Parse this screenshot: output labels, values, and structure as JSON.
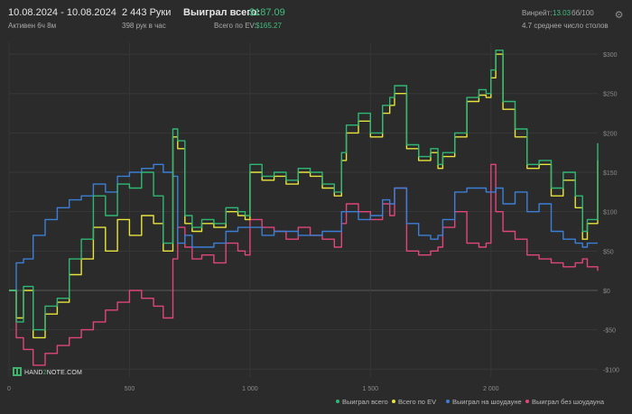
{
  "header": {
    "date_range": "10.08.2024 - 10.08.2024",
    "active_time": "Активен 6ч 8м",
    "hands": "2 443 Руки",
    "hands_per_hour": "398 рук в час",
    "won_total_label": "Выиграл всего:",
    "won_total_value": "$187.09",
    "ev_total_label": "Всего по EV:",
    "ev_total_value": "$165.27",
    "winrate_label": "Винрейт:",
    "winrate_value": "13.03",
    "winrate_unit": "бб/100",
    "avg_tables": "4.7 среднее число столов"
  },
  "icons": {
    "settings": "gear-icon",
    "logo": "hand2note-logo"
  },
  "logo": {
    "prefix": "HAND",
    "digit": "2",
    "suffix": "NOTE.COM"
  },
  "colors": {
    "won_total": "#2fb774",
    "ev_total": "#e8e43c",
    "showdown": "#3b7fd6",
    "non_showdown": "#e0457b",
    "background": "#2b2b2b"
  },
  "legend": {
    "won_total": "Выиграл всего",
    "ev_total": "Всего по EV",
    "showdown": "Выиграл на шоудауне",
    "non_showdown": "Выиграл без шоудауна"
  },
  "chart_data": {
    "type": "line",
    "xlim": [
      0,
      2443
    ],
    "ylim": [
      -110,
      315
    ],
    "x_ticks": [
      0,
      500,
      1000,
      1500,
      2000
    ],
    "x_tick_labels": [
      "0",
      "500",
      "1 000",
      "1 500",
      "2 000"
    ],
    "y_ticks": [
      -100,
      -50,
      0,
      50,
      100,
      150,
      200,
      250,
      300
    ],
    "y_tick_labels": [
      "-$100",
      "-$50",
      "$0",
      "$50",
      "$100",
      "$150",
      "$200",
      "$250",
      "$300"
    ],
    "grid": true,
    "legend_position": "bottom-right",
    "series": [
      {
        "key": "won_total",
        "name": "Выиграл всего",
        "x": [
          0,
          30,
          60,
          100,
          150,
          200,
          250,
          300,
          350,
          400,
          450,
          500,
          550,
          600,
          640,
          680,
          700,
          730,
          760,
          800,
          850,
          900,
          950,
          980,
          1000,
          1050,
          1100,
          1150,
          1200,
          1250,
          1300,
          1350,
          1380,
          1400,
          1450,
          1500,
          1550,
          1580,
          1600,
          1650,
          1700,
          1750,
          1780,
          1800,
          1850,
          1900,
          1950,
          1980,
          2000,
          2020,
          2050,
          2100,
          2150,
          2200,
          2250,
          2300,
          2350,
          2380,
          2400,
          2443
        ],
        "values": [
          0,
          -40,
          5,
          -50,
          -20,
          -10,
          40,
          65,
          120,
          95,
          135,
          130,
          150,
          120,
          60,
          205,
          190,
          95,
          80,
          90,
          85,
          105,
          100,
          95,
          160,
          145,
          150,
          140,
          155,
          150,
          135,
          125,
          175,
          210,
          225,
          200,
          235,
          245,
          260,
          185,
          170,
          180,
          160,
          175,
          200,
          245,
          255,
          250,
          280,
          305,
          240,
          205,
          160,
          165,
          130,
          150,
          120,
          75,
          90,
          187
        ]
      },
      {
        "key": "ev_total",
        "name": "Всего по EV",
        "x": [
          0,
          30,
          60,
          100,
          150,
          200,
          250,
          300,
          350,
          400,
          450,
          500,
          550,
          600,
          640,
          680,
          700,
          730,
          760,
          800,
          850,
          900,
          950,
          980,
          1000,
          1050,
          1100,
          1150,
          1200,
          1250,
          1300,
          1350,
          1380,
          1400,
          1450,
          1500,
          1550,
          1580,
          1600,
          1650,
          1700,
          1750,
          1780,
          1800,
          1850,
          1900,
          1950,
          1980,
          2000,
          2020,
          2050,
          2100,
          2150,
          2200,
          2250,
          2300,
          2350,
          2380,
          2400,
          2443
        ],
        "values": [
          0,
          -35,
          0,
          -60,
          -30,
          -15,
          20,
          40,
          80,
          50,
          90,
          70,
          95,
          85,
          50,
          195,
          180,
          85,
          75,
          85,
          80,
          100,
          95,
          90,
          150,
          140,
          145,
          135,
          150,
          145,
          130,
          120,
          165,
          200,
          215,
          195,
          225,
          235,
          250,
          180,
          165,
          175,
          155,
          170,
          195,
          240,
          248,
          245,
          270,
          300,
          230,
          195,
          155,
          160,
          120,
          140,
          105,
          65,
          85,
          165
        ]
      },
      {
        "key": "showdown",
        "name": "Выиграл на шоудауне",
        "x": [
          0,
          30,
          60,
          100,
          150,
          200,
          250,
          300,
          350,
          400,
          450,
          500,
          550,
          600,
          640,
          680,
          700,
          730,
          760,
          800,
          850,
          900,
          950,
          980,
          1000,
          1050,
          1100,
          1150,
          1200,
          1250,
          1300,
          1350,
          1380,
          1400,
          1450,
          1500,
          1550,
          1580,
          1600,
          1650,
          1700,
          1750,
          1780,
          1800,
          1850,
          1900,
          1950,
          1980,
          2000,
          2020,
          2050,
          2100,
          2150,
          2200,
          2250,
          2300,
          2350,
          2380,
          2400,
          2443
        ],
        "values": [
          0,
          35,
          40,
          70,
          90,
          105,
          115,
          120,
          135,
          125,
          145,
          150,
          155,
          160,
          150,
          145,
          60,
          70,
          55,
          55,
          60,
          75,
          80,
          80,
          80,
          70,
          75,
          75,
          70,
          70,
          75,
          75,
          100,
          100,
          90,
          95,
          115,
          110,
          130,
          85,
          70,
          65,
          70,
          90,
          125,
          130,
          130,
          125,
          125,
          130,
          110,
          125,
          100,
          110,
          75,
          65,
          60,
          55,
          60,
          60
        ]
      },
      {
        "key": "non_showdown",
        "name": "Выиграл без шоудауна",
        "x": [
          0,
          30,
          60,
          100,
          150,
          200,
          250,
          300,
          350,
          400,
          450,
          500,
          550,
          600,
          640,
          680,
          700,
          730,
          760,
          800,
          850,
          900,
          950,
          980,
          1000,
          1050,
          1100,
          1150,
          1200,
          1250,
          1300,
          1350,
          1380,
          1400,
          1450,
          1500,
          1550,
          1580,
          1600,
          1650,
          1700,
          1750,
          1780,
          1800,
          1850,
          1900,
          1950,
          1980,
          2000,
          2020,
          2050,
          2100,
          2150,
          2200,
          2250,
          2300,
          2350,
          2380,
          2400,
          2443
        ],
        "values": [
          0,
          -60,
          -75,
          -95,
          -80,
          -70,
          -60,
          -50,
          -40,
          -25,
          -15,
          0,
          -10,
          -20,
          -35,
          40,
          80,
          55,
          40,
          45,
          35,
          60,
          50,
          45,
          90,
          80,
          75,
          65,
          80,
          70,
          65,
          55,
          85,
          110,
          100,
          90,
          110,
          95,
          130,
          50,
          45,
          50,
          55,
          80,
          100,
          60,
          55,
          60,
          160,
          100,
          75,
          65,
          45,
          40,
          35,
          30,
          35,
          40,
          30,
          25
        ]
      }
    ]
  }
}
